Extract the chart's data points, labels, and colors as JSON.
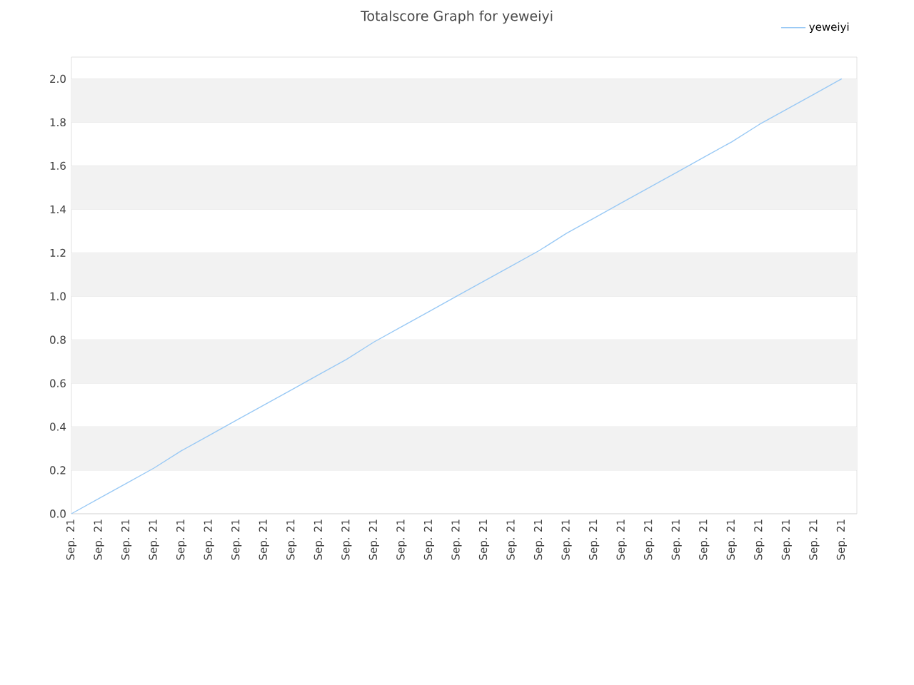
{
  "chart_data": {
    "type": "line",
    "title": "Totalscore Graph for yeweiyi",
    "categories": [
      "Sep. 21",
      "Sep. 21",
      "Sep. 21",
      "Sep. 21",
      "Sep. 21",
      "Sep. 21",
      "Sep. 21",
      "Sep. 21",
      "Sep. 21",
      "Sep. 21",
      "Sep. 21",
      "Sep. 21",
      "Sep. 21",
      "Sep. 21",
      "Sep. 21",
      "Sep. 21",
      "Sep. 21",
      "Sep. 21",
      "Sep. 21",
      "Sep. 21",
      "Sep. 21",
      "Sep. 21",
      "Sep. 21",
      "Sep. 21",
      "Sep. 21",
      "Sep. 21",
      "Sep. 21",
      "Sep. 21",
      "Sep. 21"
    ],
    "series": [
      {
        "name": "yeweiyi",
        "color": "#99c9f5",
        "values": [
          0,
          0.07,
          0.14,
          0.21,
          0.29,
          0.36,
          0.43,
          0.5,
          0.57,
          0.64,
          0.71,
          0.79,
          0.86,
          0.93,
          1.0,
          1.07,
          1.14,
          1.21,
          1.29,
          1.36,
          1.43,
          1.5,
          1.57,
          1.64,
          1.71,
          1.79,
          1.86,
          1.93,
          2.0
        ]
      }
    ],
    "ylim": [
      0,
      2.1
    ],
    "yticks": [
      {
        "value": 0,
        "label": "0.0"
      },
      0.2,
      0.4,
      0.6,
      0.8,
      {
        "value": 1,
        "label": "1.0"
      },
      1.2,
      1.4,
      1.6,
      1.8,
      {
        "value": 2,
        "label": "2.0"
      }
    ],
    "grid": "y",
    "legend": "top right",
    "marker": "none",
    "line_style": "solid"
  }
}
